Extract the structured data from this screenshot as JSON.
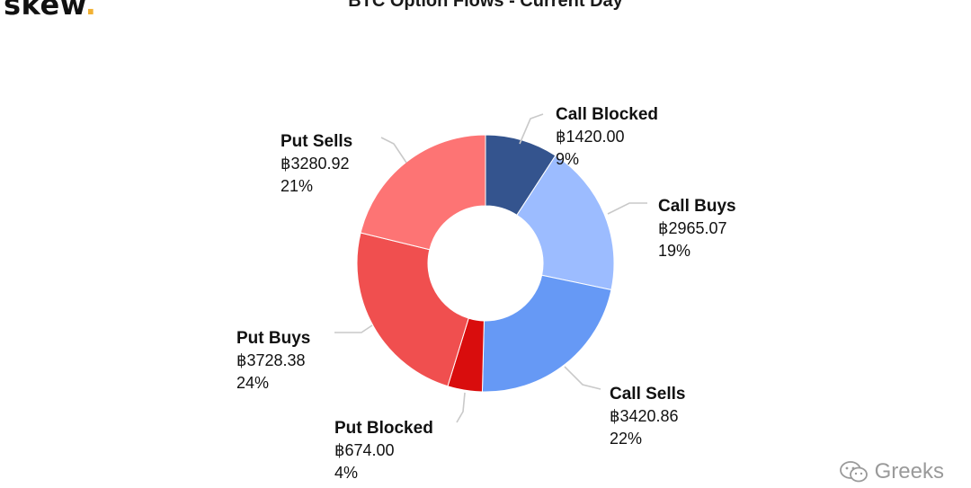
{
  "logo": {
    "text": "skew",
    "dot": "."
  },
  "watermark": {
    "text": "Greeks",
    "icon": "wechat-icon"
  },
  "chart_data": {
    "type": "pie",
    "variant": "donut",
    "title": "BTC Option Flows - Current Day",
    "currency_symbol": "฿",
    "slices": [
      {
        "name": "Call Blocked",
        "value": 1420.0,
        "value_label": "฿1420.00",
        "percent_label": "9%",
        "color": "#34548e"
      },
      {
        "name": "Call Buys",
        "value": 2965.07,
        "value_label": "฿2965.07",
        "percent_label": "19%",
        "color": "#9cbcff"
      },
      {
        "name": "Call Sells",
        "value": 3420.86,
        "value_label": "฿3420.86",
        "percent_label": "22%",
        "color": "#6699f5"
      },
      {
        "name": "Put Blocked",
        "value": 674.0,
        "value_label": "฿674.00",
        "percent_label": "4%",
        "color": "#d90d0d"
      },
      {
        "name": "Put Buys",
        "value": 3728.38,
        "value_label": "฿3728.38",
        "percent_label": "24%",
        "color": "#f04f4f"
      },
      {
        "name": "Put Sells",
        "value": 3280.92,
        "value_label": "฿3280.92",
        "percent_label": "21%",
        "color": "#fd7474"
      }
    ],
    "legend": "none"
  }
}
